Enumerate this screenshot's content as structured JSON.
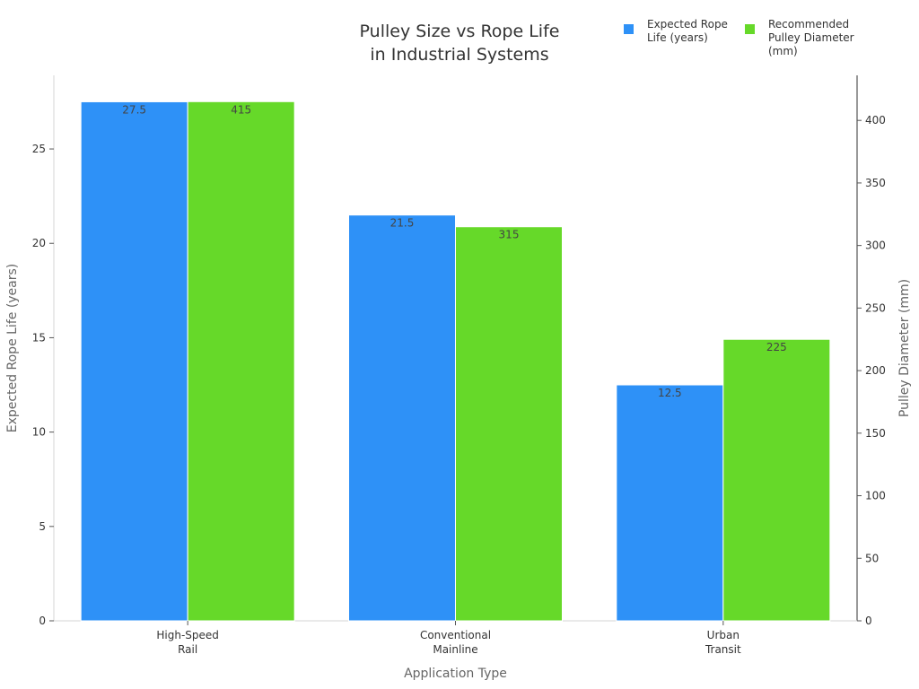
{
  "chart_data": {
    "type": "bar",
    "title_lines": [
      "Pulley Size vs Rope Life",
      "in Industrial Systems"
    ],
    "xlabel": "Application Type",
    "categories": [
      [
        "High-Speed",
        "Rail"
      ],
      [
        "Conventional",
        "Mainline"
      ],
      [
        "Urban",
        "Transit"
      ]
    ],
    "series": [
      {
        "name": "Expected Rope Life (years)",
        "legend_lines": [
          "Expected Rope",
          "Life (years)"
        ],
        "axis": "left",
        "color": "#2e91f7",
        "values": [
          27.5,
          21.5,
          12.5
        ],
        "value_labels": [
          "27.5",
          "21.5",
          "12.5"
        ]
      },
      {
        "name": "Recommended Pulley Diameter (mm)",
        "legend_lines": [
          "Recommended",
          "Pulley Diameter",
          "(mm)"
        ],
        "axis": "right",
        "color": "#66d929",
        "values": [
          415,
          315,
          225
        ],
        "value_labels": [
          "415",
          "315",
          "225"
        ]
      }
    ],
    "y_left": {
      "label": "Expected Rope Life (years)",
      "lim": [
        0,
        28.9
      ],
      "ticks": [
        0,
        5,
        10,
        15,
        20,
        25
      ]
    },
    "y_right": {
      "label": "Pulley Diameter (mm)",
      "lim": [
        0,
        436
      ],
      "ticks": [
        0,
        50,
        100,
        150,
        200,
        250,
        300,
        350,
        400
      ]
    },
    "grid": false,
    "legend_position": "top-right"
  }
}
